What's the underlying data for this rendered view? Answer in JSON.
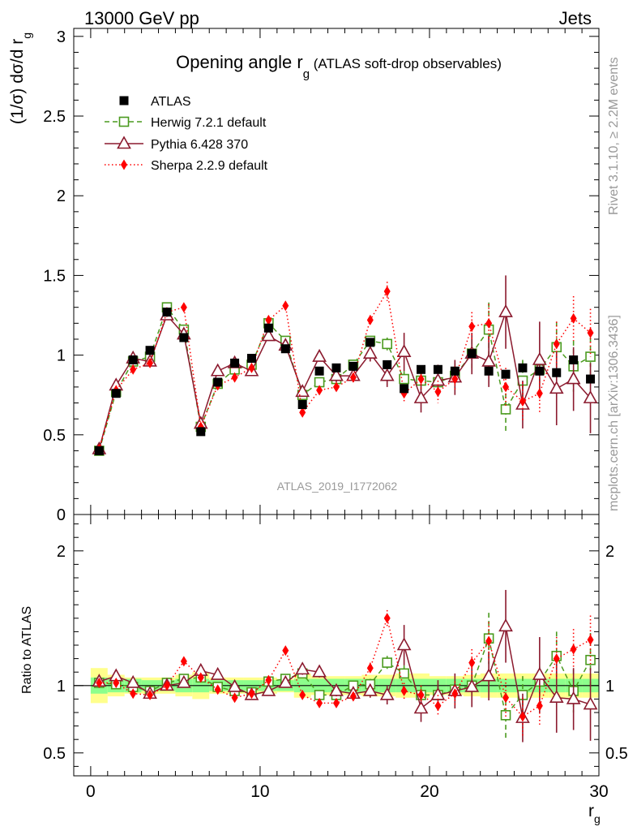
{
  "header": {
    "left": "13000 GeV pp",
    "right": "Jets"
  },
  "side_labels": {
    "rivet": "Rivet 3.1.10, ≥ 2.2M events",
    "mcplots": "mcplots.cern.ch [arXiv:1306.3436]"
  },
  "chart_data": {
    "type": "scatter",
    "title": {
      "main": "Opening angle r",
      "sub": "g",
      "tail": " (ATLAS soft-drop observables)"
    },
    "analysis_label": "ATLAS_2019_I1772062",
    "xlabel": {
      "main": "r",
      "sub": "g"
    },
    "ylabel_main": "(1/σ) dσ/d r",
    "ylabel_main_sub": "g",
    "ylabel_ratio": "Ratio to ATLAS",
    "xlim": [
      -1,
      30
    ],
    "ylim_main": [
      0,
      3.05
    ],
    "ylim_ratio": [
      0.33,
      2.27
    ],
    "x_ticks": [
      0,
      10,
      20,
      30
    ],
    "y_ticks_main": [
      0,
      0.5,
      1,
      1.5,
      2,
      2.5,
      3
    ],
    "y_tick_labels_main": [
      "0",
      "0.5",
      "1",
      "1.5",
      "2",
      "2.5",
      "3"
    ],
    "y_ticks_ratio": [
      0.5,
      1,
      2
    ],
    "y_tick_labels_ratio": [
      "0.5",
      "1",
      "2"
    ],
    "legend_position": "top-left",
    "x": [
      0.5,
      1.5,
      2.5,
      3.5,
      4.5,
      5.5,
      6.5,
      7.5,
      8.5,
      9.5,
      10.5,
      11.5,
      12.5,
      13.5,
      14.5,
      15.5,
      16.5,
      17.5,
      18.5,
      19.5,
      20.5,
      21.5,
      22.5,
      23.5,
      24.5,
      25.5,
      26.5,
      27.5,
      28.5,
      29.5
    ],
    "ratio_band_inner": [
      0.06,
      0.05,
      0.05,
      0.04,
      0.04,
      0.05,
      0.05,
      0.04,
      0.04,
      0.04,
      0.04,
      0.04,
      0.05,
      0.05,
      0.05,
      0.05,
      0.05,
      0.05,
      0.05,
      0.05,
      0.05,
      0.05,
      0.05,
      0.05,
      0.05,
      0.05,
      0.05,
      0.05,
      0.05,
      0.05
    ],
    "ratio_band_outer": [
      0.13,
      0.08,
      0.06,
      0.06,
      0.06,
      0.08,
      0.1,
      0.06,
      0.06,
      0.06,
      0.06,
      0.05,
      0.09,
      0.07,
      0.07,
      0.07,
      0.08,
      0.08,
      0.09,
      0.09,
      0.07,
      0.07,
      0.08,
      0.09,
      0.09,
      0.09,
      0.09,
      0.09,
      0.09,
      0.09
    ],
    "series": [
      {
        "name": "ATLAS",
        "color": "#000000",
        "marker": "square-filled",
        "line": "none",
        "values": [
          0.4,
          0.76,
          0.97,
          1.03,
          1.27,
          1.11,
          0.52,
          0.83,
          0.95,
          0.98,
          1.17,
          1.04,
          0.69,
          0.9,
          0.92,
          0.93,
          1.08,
          0.94,
          0.79,
          0.91,
          0.91,
          0.9,
          1.01,
          0.9,
          0.88,
          0.92,
          0.9,
          0.89,
          0.97,
          0.85
        ],
        "ratio": [
          1,
          1,
          1,
          1,
          1,
          1,
          1,
          1,
          1,
          1,
          1,
          1,
          1,
          1,
          1,
          1,
          1,
          1,
          1,
          1,
          1,
          1,
          1,
          1,
          1,
          1,
          1,
          1,
          1,
          1
        ]
      },
      {
        "name": "Herwig 7.2.1 default",
        "color": "#4a9a1e",
        "marker": "square-open",
        "line": "dashed",
        "values": [
          0.4,
          0.77,
          0.96,
          0.99,
          1.3,
          1.16,
          0.55,
          0.82,
          0.91,
          0.94,
          1.2,
          1.09,
          0.75,
          0.83,
          0.85,
          0.94,
          1.09,
          1.07,
          0.85,
          0.84,
          0.83,
          0.87,
          1.01,
          1.16,
          0.66,
          0.84,
          0.91,
          1.05,
          0.93,
          0.99
        ],
        "errors": [
          0.01,
          0.01,
          0.01,
          0.01,
          0.01,
          0.01,
          0.01,
          0.01,
          0.01,
          0.01,
          0.01,
          0.01,
          0.02,
          0.02,
          0.02,
          0.02,
          0.03,
          0.04,
          0.05,
          0.06,
          0.07,
          0.08,
          0.09,
          0.17,
          0.15,
          0.13,
          0.1,
          0.16,
          0.16,
          0.17
        ],
        "ratio": [
          1.02,
          1.01,
          0.99,
          0.96,
          1.02,
          1.05,
          1.06,
          0.99,
          0.96,
          0.95,
          1.03,
          1.05,
          1.09,
          0.93,
          0.93,
          1.0,
          1.01,
          1.17,
          1.09,
          0.93,
          0.93,
          0.97,
          1.0,
          1.35,
          0.78,
          0.93,
          1.03,
          1.22,
          0.96,
          1.19
        ],
        "ratio_errors": [
          0.02,
          0.02,
          0.02,
          0.02,
          0.02,
          0.02,
          0.02,
          0.02,
          0.02,
          0.02,
          0.02,
          0.02,
          0.03,
          0.03,
          0.03,
          0.03,
          0.04,
          0.05,
          0.06,
          0.07,
          0.07,
          0.08,
          0.09,
          0.19,
          0.17,
          0.14,
          0.11,
          0.18,
          0.16,
          0.2
        ]
      },
      {
        "name": "Pythia 6.428 370",
        "color": "#8b1a2e",
        "marker": "triangle-open",
        "line": "solid",
        "values": [
          0.41,
          0.81,
          0.98,
          0.96,
          1.25,
          1.13,
          0.57,
          0.9,
          0.95,
          0.9,
          1.12,
          1.06,
          0.77,
          0.99,
          0.87,
          0.87,
          1.01,
          0.87,
          1.02,
          0.73,
          0.84,
          0.86,
          1.01,
          0.96,
          1.27,
          0.69,
          0.97,
          0.79,
          0.85,
          0.73
        ],
        "errors": [
          0.01,
          0.01,
          0.01,
          0.01,
          0.01,
          0.01,
          0.01,
          0.01,
          0.01,
          0.01,
          0.02,
          0.02,
          0.03,
          0.03,
          0.04,
          0.04,
          0.05,
          0.07,
          0.12,
          0.09,
          0.1,
          0.11,
          0.13,
          0.16,
          0.23,
          0.15,
          0.24,
          0.23,
          0.2,
          0.22
        ],
        "ratio": [
          1.03,
          1.07,
          1.02,
          0.94,
          1.0,
          1.02,
          1.11,
          1.08,
          0.99,
          0.93,
          0.96,
          1.02,
          1.12,
          1.1,
          0.96,
          0.94,
          0.96,
          0.93,
          1.3,
          0.83,
          0.93,
          0.96,
          0.99,
          1.07,
          1.44,
          0.76,
          1.08,
          0.91,
          0.9,
          0.86
        ],
        "ratio_errors": [
          0.02,
          0.02,
          0.02,
          0.02,
          0.02,
          0.02,
          0.02,
          0.02,
          0.02,
          0.02,
          0.02,
          0.02,
          0.04,
          0.04,
          0.04,
          0.05,
          0.05,
          0.07,
          0.15,
          0.1,
          0.11,
          0.13,
          0.15,
          0.18,
          0.27,
          0.18,
          0.28,
          0.26,
          0.23,
          0.27
        ]
      },
      {
        "name": "Sherpa 2.2.9 default",
        "color": "#ff0000",
        "marker": "diamond-filled",
        "line": "dotted",
        "values": [
          0.41,
          0.78,
          0.91,
          0.95,
          1.27,
          1.3,
          0.55,
          0.81,
          0.86,
          0.92,
          1.22,
          1.31,
          0.64,
          0.78,
          0.8,
          0.86,
          1.22,
          1.4,
          0.76,
          0.85,
          0.77,
          0.85,
          1.18,
          1.2,
          0.8,
          0.71,
          0.76,
          1.07,
          1.23,
          1.14
        ],
        "errors": [
          0.01,
          0.01,
          0.01,
          0.01,
          0.01,
          0.01,
          0.01,
          0.01,
          0.01,
          0.01,
          0.01,
          0.01,
          0.02,
          0.02,
          0.02,
          0.02,
          0.03,
          0.06,
          0.05,
          0.06,
          0.07,
          0.08,
          0.09,
          0.12,
          0.12,
          0.12,
          0.12,
          0.14,
          0.14,
          0.15
        ],
        "ratio": [
          1.02,
          1.02,
          0.94,
          0.93,
          1.0,
          1.18,
          1.06,
          0.97,
          0.91,
          0.94,
          1.04,
          1.26,
          0.93,
          0.87,
          0.87,
          0.92,
          1.13,
          1.5,
          0.96,
          0.93,
          0.85,
          0.94,
          1.17,
          1.33,
          0.91,
          0.77,
          0.85,
          1.2,
          1.27,
          1.34
        ],
        "ratio_errors": [
          0.02,
          0.02,
          0.02,
          0.02,
          0.02,
          0.02,
          0.02,
          0.02,
          0.02,
          0.02,
          0.02,
          0.02,
          0.03,
          0.03,
          0.03,
          0.03,
          0.04,
          0.06,
          0.06,
          0.07,
          0.08,
          0.09,
          0.1,
          0.14,
          0.14,
          0.14,
          0.14,
          0.16,
          0.15,
          0.18
        ]
      }
    ]
  }
}
